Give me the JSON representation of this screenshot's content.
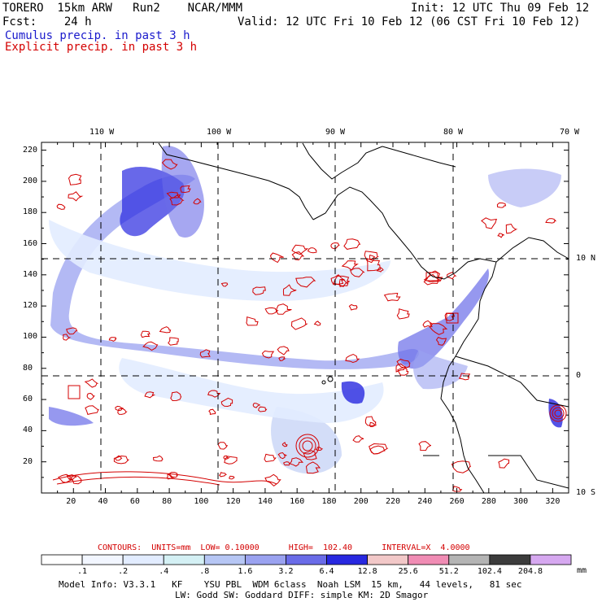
{
  "header": {
    "model_line": "TORERO  15km ARW   Run2    NCAR/MMM",
    "init_line": "Init: 12 UTC Thu 09 Feb 12",
    "fcst_line": "Fcst:    24 h",
    "valid_line": "Valid: 12 UTC Fri 10 Feb 12 (06 CST Fri 10 Feb 12)",
    "cumulus_label": "Cumulus precip. in past 3 h",
    "explicit_label": "Explicit precip. in past 3 h",
    "cumulus_color": "#1a1acc",
    "explicit_color": "#d40000"
  },
  "axes": {
    "lon_labels": [
      "110 W",
      "100 W",
      "90 W",
      "80 W",
      "70 W"
    ],
    "lat_labels": [
      "10 N",
      "0",
      "10 S"
    ],
    "y_ticks": [
      "220",
      "200",
      "180",
      "160",
      "140",
      "120",
      "100",
      "80",
      "60",
      "40",
      "20"
    ],
    "x_ticks": [
      "20",
      "40",
      "60",
      "80",
      "100",
      "120",
      "140",
      "160",
      "180",
      "200",
      "220",
      "240",
      "260",
      "280",
      "300",
      "320"
    ]
  },
  "contours": {
    "text": "CONTOURS:  UNITS=mm  LOW= 0.10000      HIGH=  102.40      INTERVAL=X  4.0000",
    "color": "#d40000"
  },
  "colorbar": {
    "labels": [
      ".1",
      ".2",
      ".4",
      ".8",
      "1.6",
      "3.2",
      "6.4",
      "12.8",
      "25.6",
      "51.2",
      "102.4",
      "204.8"
    ],
    "unit": "mm",
    "colors": [
      "#ffffff",
      "#f2f6ff",
      "#e2ecff",
      "#d4f0f4",
      "#b6c6f4",
      "#9aa2f0",
      "#6a6ce8",
      "#2828e0",
      "#f2c8c8",
      "#f08cb4",
      "#b4b4b4",
      "#3c3c3c",
      "#d6a8f0"
    ]
  },
  "footer": {
    "line1": "Model Info: V3.3.1   KF    YSU PBL  WDM 6class  Noah LSM  15 km,   44 levels,   81 sec",
    "line2": "LW: Godd SW: Goddard DIFF: simple KM: 2D Smagor"
  }
}
